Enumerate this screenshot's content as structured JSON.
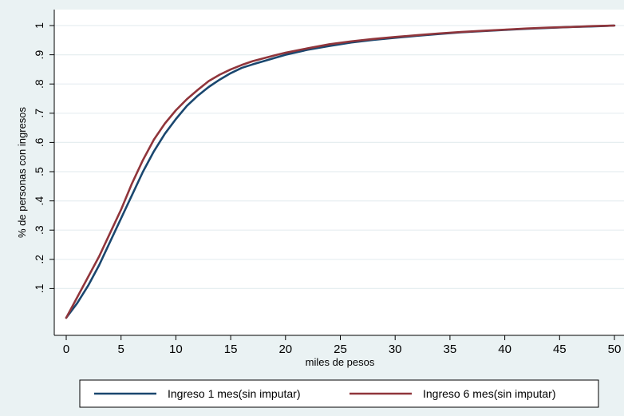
{
  "chart_data": {
    "type": "line",
    "title": "",
    "xlabel": "miles de pesos",
    "ylabel": "% de personas con ingresos",
    "xlim": [
      0,
      50
    ],
    "ylim": [
      0,
      1
    ],
    "x_ticks": [
      0,
      5,
      10,
      15,
      20,
      25,
      30,
      35,
      40,
      45,
      50
    ],
    "x_tick_labels": [
      "0",
      "5",
      "10",
      "15",
      "20",
      "25",
      "30",
      "35",
      "40",
      "45",
      "50"
    ],
    "y_ticks": [
      0.1,
      0.2,
      0.3,
      0.4,
      0.5,
      0.6,
      0.7,
      0.8,
      0.9,
      1
    ],
    "y_tick_labels": [
      ".1",
      ".2",
      ".3",
      ".4",
      ".5",
      ".6",
      ".7",
      ".8",
      ".9",
      "1"
    ],
    "grid": "horizontal",
    "legend_placement": "bottom",
    "colors": {
      "plot_background": "#ffffff",
      "outer_background": "#eaf2f3",
      "gridline": "#e6eef0",
      "series_1": "#1a476f",
      "series_2": "#90353b"
    },
    "series": [
      {
        "name": "Ingreso 1 mes(sin imputar)",
        "color": "#1a476f",
        "x": [
          0,
          1,
          2,
          3,
          4,
          5,
          6,
          7,
          8,
          9,
          10,
          11,
          12,
          13,
          14,
          15,
          16,
          17,
          18,
          19,
          20,
          22,
          24,
          26,
          28,
          30,
          32,
          34,
          36,
          38,
          40,
          42,
          44,
          46,
          48,
          50
        ],
        "y": [
          0.0,
          0.05,
          0.11,
          0.18,
          0.26,
          0.34,
          0.42,
          0.5,
          0.57,
          0.63,
          0.68,
          0.725,
          0.76,
          0.79,
          0.815,
          0.837,
          0.855,
          0.867,
          0.878,
          0.889,
          0.9,
          0.917,
          0.93,
          0.942,
          0.951,
          0.958,
          0.965,
          0.971,
          0.977,
          0.981,
          0.985,
          0.989,
          0.992,
          0.995,
          0.997,
          1.0
        ]
      },
      {
        "name": "Ingreso 6 mes(sin imputar)",
        "color": "#90353b",
        "x": [
          0,
          1,
          2,
          3,
          4,
          5,
          6,
          7,
          8,
          9,
          10,
          11,
          12,
          13,
          14,
          15,
          16,
          17,
          18,
          19,
          20,
          22,
          24,
          26,
          28,
          30,
          32,
          34,
          36,
          38,
          40,
          42,
          44,
          46,
          48,
          50
        ],
        "y": [
          0.0,
          0.07,
          0.14,
          0.21,
          0.29,
          0.37,
          0.46,
          0.54,
          0.61,
          0.665,
          0.71,
          0.748,
          0.78,
          0.81,
          0.832,
          0.85,
          0.865,
          0.878,
          0.888,
          0.898,
          0.907,
          0.922,
          0.936,
          0.946,
          0.954,
          0.961,
          0.967,
          0.973,
          0.978,
          0.982,
          0.986,
          0.99,
          0.993,
          0.995,
          0.998,
          1.0
        ]
      }
    ]
  }
}
